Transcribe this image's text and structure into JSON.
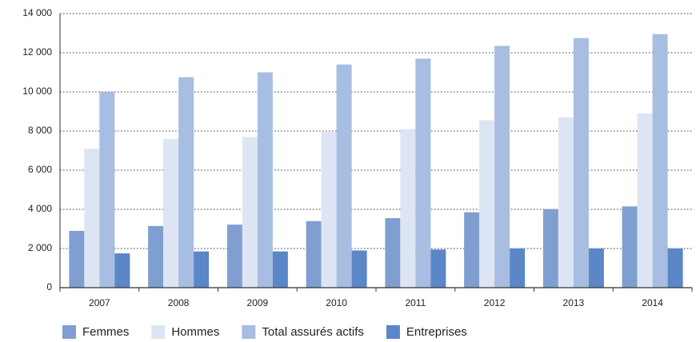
{
  "chart_data": {
    "type": "bar",
    "categories": [
      "2007",
      "2008",
      "2009",
      "2010",
      "2011",
      "2012",
      "2013",
      "2014"
    ],
    "series": [
      {
        "name": "Femmes",
        "color": "#7f9fd0",
        "values": [
          2900,
          3150,
          3220,
          3400,
          3550,
          3850,
          4000,
          4150
        ]
      },
      {
        "name": "Hommes",
        "color": "#dde5f4",
        "values": [
          7100,
          7600,
          7700,
          7950,
          8100,
          8550,
          8700,
          8900
        ]
      },
      {
        "name": "Total assurés actifs",
        "color": "#a7bde1",
        "values": [
          10000,
          10750,
          11000,
          11400,
          11700,
          12350,
          12750,
          12950
        ]
      },
      {
        "name": "Entreprises",
        "color": "#5b87c8",
        "values": [
          1750,
          1850,
          1850,
          1900,
          1950,
          2000,
          2000,
          2000
        ]
      }
    ],
    "ylim": [
      0,
      14000
    ],
    "yticks": [
      0,
      {
        "value": 2000,
        "label": "2 000"
      },
      {
        "value": 4000,
        "label": "4 000"
      },
      {
        "value": 6000,
        "label": "6 000"
      },
      {
        "value": 8000,
        "label": "8 000"
      },
      {
        "value": 10000,
        "label": "10 000"
      },
      {
        "value": 12000,
        "label": "12 000"
      },
      {
        "value": 14000,
        "label": "14 000"
      }
    ],
    "grid": true,
    "legend": "bottom"
  }
}
